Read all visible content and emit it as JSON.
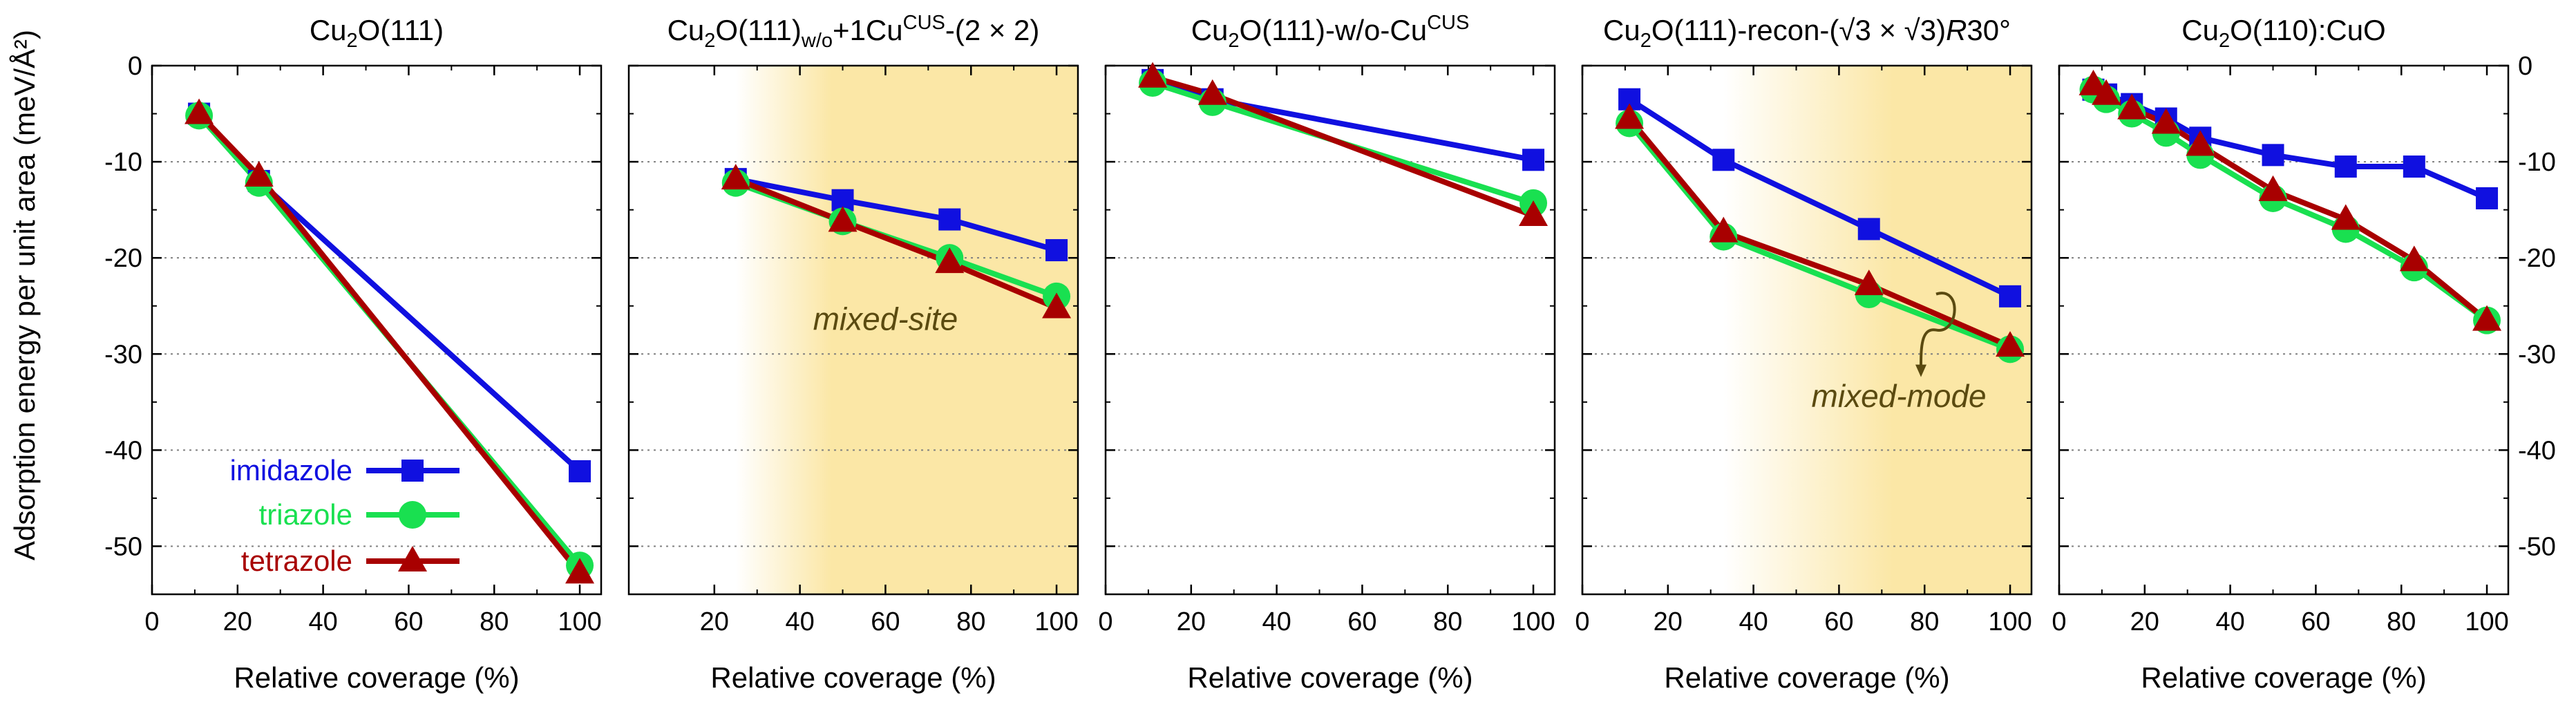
{
  "figure": {
    "ylabel": "Adsorption energy per unit area (meV/Å²)",
    "xlabel": "Relative coverage (%)",
    "y_ticks": [
      "0",
      "-10",
      "-20",
      "-30",
      "-40",
      "-50"
    ],
    "legend": [
      "imidazole",
      "triazole",
      "tetrazole"
    ]
  },
  "colors": {
    "imidazole": "#1010e0",
    "triazole": "#19e050",
    "tetrazole": "#a80000",
    "shade": "#fbe7a6",
    "annotation": "#5a4a10"
  },
  "chart_data": [
    {
      "type": "line",
      "title": "Cu₂O(111)",
      "title_parts": [
        [
          "Cu",
          ""
        ],
        [
          "2",
          "sub"
        ],
        [
          "O(111)",
          ""
        ]
      ],
      "xlabel": "Relative coverage (%)",
      "ylabel": "Adsorption energy per unit area (meV/Å²)",
      "xlim": [
        0,
        105
      ],
      "ylim": [
        -55,
        0
      ],
      "x_ticks": [
        0,
        20,
        40,
        60,
        80,
        100
      ],
      "shaded": null,
      "series": [
        {
          "name": "imidazole",
          "x": [
            11,
            25,
            100
          ],
          "y": [
            -5,
            -12,
            -42.2
          ]
        },
        {
          "name": "triazole",
          "x": [
            11,
            25,
            100
          ],
          "y": [
            -5.2,
            -12.2,
            -52
          ]
        },
        {
          "name": "tetrazole",
          "x": [
            11,
            25,
            100
          ],
          "y": [
            -5,
            -11.5,
            -52.8
          ]
        }
      ]
    },
    {
      "type": "line",
      "title": "Cu₂O(111)w/o+1Cu^CUS-(2 × 2)",
      "title_parts": [
        [
          "Cu",
          ""
        ],
        [
          "2",
          "sub"
        ],
        [
          "O(111)",
          ""
        ],
        [
          "w/o",
          "sub"
        ],
        [
          "+1Cu",
          ""
        ],
        [
          "CUS",
          "sup"
        ],
        [
          "-(2 × 2)",
          ""
        ]
      ],
      "xlabel": "Relative coverage (%)",
      "xlim": [
        0,
        105
      ],
      "ylim": [
        -55,
        0
      ],
      "x_ticks": [
        20,
        40,
        60,
        80,
        100
      ],
      "shaded": [
        25,
        105
      ],
      "annotation": "mixed-site",
      "series": [
        {
          "name": "imidazole",
          "x": [
            25,
            50,
            75,
            100
          ],
          "y": [
            -11.8,
            -14,
            -16,
            -19.2
          ]
        },
        {
          "name": "triazole",
          "x": [
            25,
            50,
            75,
            100
          ],
          "y": [
            -12.2,
            -16.2,
            -20,
            -24
          ]
        },
        {
          "name": "tetrazole",
          "x": [
            25,
            50,
            75,
            100
          ],
          "y": [
            -11.8,
            -16.2,
            -20.5,
            -25.2
          ]
        }
      ]
    },
    {
      "type": "line",
      "title": "Cu₂O(111)-w/o-Cu^CUS",
      "title_parts": [
        [
          "Cu",
          ""
        ],
        [
          "2",
          "sub"
        ],
        [
          "O(111)-w/o-Cu",
          ""
        ],
        [
          "CUS",
          "sup"
        ]
      ],
      "xlabel": "Relative coverage (%)",
      "xlim": [
        0,
        105
      ],
      "ylim": [
        -55,
        0
      ],
      "x_ticks": [
        0,
        20,
        40,
        60,
        80,
        100
      ],
      "shaded": null,
      "series": [
        {
          "name": "imidazole",
          "x": [
            11,
            25,
            100
          ],
          "y": [
            -1.5,
            -3.5,
            -9.8
          ]
        },
        {
          "name": "triazole",
          "x": [
            11,
            25,
            100
          ],
          "y": [
            -1.8,
            -3.8,
            -14.3
          ]
        },
        {
          "name": "tetrazole",
          "x": [
            11,
            25,
            100
          ],
          "y": [
            -1.2,
            -3,
            -15.6
          ]
        }
      ]
    },
    {
      "type": "line",
      "title": "Cu₂O(111)-recon-(√3 × √3)R30°",
      "title_parts": [
        [
          "Cu",
          ""
        ],
        [
          "2",
          "sub"
        ],
        [
          "O(111)-recon-(√3 × √3)",
          ""
        ],
        [
          "R",
          "italic"
        ],
        [
          "30°",
          ""
        ]
      ],
      "xlabel": "Relative coverage (%)",
      "xlim": [
        0,
        105
      ],
      "ylim": [
        -55,
        0
      ],
      "x_ticks": [
        0,
        20,
        40,
        60,
        80,
        100
      ],
      "shaded": [
        33,
        105
      ],
      "annotation": "mixed-mode",
      "series": [
        {
          "name": "imidazole",
          "x": [
            11,
            33,
            67,
            100
          ],
          "y": [
            -3.5,
            -9.8,
            -17,
            -24
          ]
        },
        {
          "name": "triazole",
          "x": [
            11,
            33,
            67,
            100
          ],
          "y": [
            -6,
            -17.8,
            -23.8,
            -29.5
          ]
        },
        {
          "name": "tetrazole",
          "x": [
            11,
            33,
            67,
            100
          ],
          "y": [
            -5.5,
            -17.3,
            -22.8,
            -29.2
          ]
        }
      ]
    },
    {
      "type": "line",
      "title": "Cu₂O(110):CuO",
      "title_parts": [
        [
          "Cu",
          ""
        ],
        [
          "2",
          "sub"
        ],
        [
          "O(110):CuO",
          ""
        ]
      ],
      "xlabel": "Relative coverage (%)",
      "xlim": [
        0,
        105
      ],
      "ylim": [
        -55,
        0
      ],
      "x_ticks": [
        0,
        20,
        40,
        60,
        80,
        100
      ],
      "shaded": null,
      "series": [
        {
          "name": "imidazole",
          "x": [
            8,
            11,
            17,
            25,
            33,
            50,
            67,
            83,
            100
          ],
          "y": [
            -2.5,
            -3,
            -4,
            -5.5,
            -7.5,
            -9.3,
            -10.5,
            -10.5,
            -13.8
          ]
        },
        {
          "name": "triazole",
          "x": [
            8,
            11,
            17,
            25,
            33,
            50,
            67,
            83,
            100
          ],
          "y": [
            -2.5,
            -3.5,
            -5,
            -7,
            -9.3,
            -13.8,
            -17,
            -21,
            -26.5
          ]
        },
        {
          "name": "tetrazole",
          "x": [
            8,
            11,
            17,
            25,
            33,
            50,
            67,
            83,
            100
          ],
          "y": [
            -2,
            -3,
            -4.5,
            -6,
            -8.3,
            -13,
            -16,
            -20.3,
            -26.5
          ]
        }
      ]
    }
  ]
}
